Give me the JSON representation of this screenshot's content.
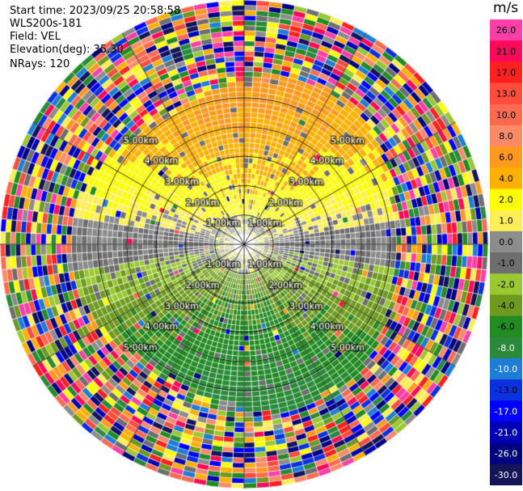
{
  "header": {
    "start_time": "Start time: 2023/09/25 20:58:58",
    "instrument": "WLS200s-181",
    "field": "Field: VEL",
    "elevation": "Elevation(deg): 35.30",
    "nrays": "NRays: 120"
  },
  "colorbar": {
    "unit": "m/s",
    "ticks": [
      "26.0",
      "21.0",
      "17.0",
      "13.0",
      "10.0",
      "8.0",
      "6.0",
      "4.0",
      "2.0",
      "1.0",
      "0.0",
      "-1.0",
      "-2.0",
      "-4.0",
      "-6.0",
      "-8.0",
      "-10.0",
      "-13.0",
      "-17.0",
      "-21.0",
      "-26.0",
      "-30.0"
    ],
    "colors": [
      "#ff3ea8",
      "#ff0a5a",
      "#ff2020",
      "#ff4c3c",
      "#ff6a50",
      "#ff8a6a",
      "#ff9a1e",
      "#ffb000",
      "#ffff00",
      "#ffee55",
      "#8c8c8c",
      "#6e6e6e",
      "#9ac832",
      "#6e9a1e",
      "#228b22",
      "#2a8a3a",
      "#1e7ed6",
      "#0a30e0",
      "#0000ff",
      "#0000b4",
      "#000080",
      "#14145a"
    ]
  },
  "chart_data": {
    "type": "heatmap",
    "projection": "polar PPI scan",
    "nrays": 120,
    "field": "VEL",
    "unit": "m/s",
    "range_ring_labels": [
      "1.00km",
      "2.00km",
      "3.00km",
      "4.00km",
      "5.00km"
    ],
    "range_rings_km": [
      1,
      2,
      3,
      4,
      5
    ],
    "max_range_km": 5.0,
    "velocity_range": [
      -30,
      26
    ],
    "pattern": "positive (toward) velocities to the north, negative to the south; noisy returns beyond ~3.3km"
  }
}
